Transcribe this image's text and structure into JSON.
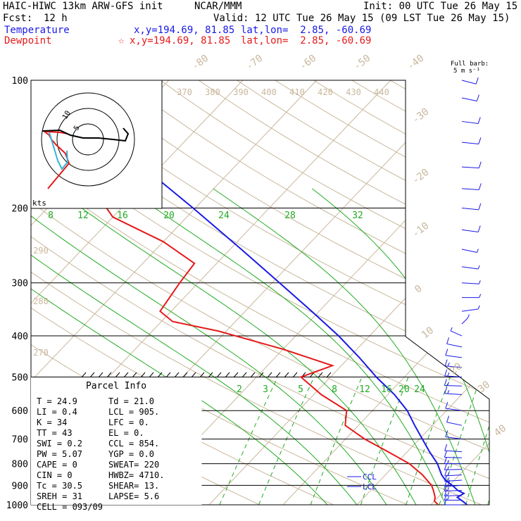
{
  "header": {
    "model": "HAIC-HIWC 13km ARW-GFS init",
    "org": "NCAR/MMM",
    "init": "Init: 00 UTC Tue 26 May 15",
    "fcst_label": "Fcst:",
    "fcst_value": "12 h",
    "valid": "Valid: 12 UTC Tue 26 May 15 (09 LST Tue 26 May 15)",
    "temperature_label": "Temperature",
    "temperature_xy": "x,y=194.69, 81.85",
    "temperature_latlon": "lat,lon=  2.85, -60.69",
    "dewpoint_label": "Dewpoint",
    "dewpoint_star": "☆",
    "dewpoint_xy": "x,y=194.69, 81.85",
    "dewpoint_latlon": "lat,lon=  2.85, -60.69"
  },
  "barb_legend": {
    "line1": "Full barb:",
    "line2": "5 m s⁻¹"
  },
  "colors": {
    "temperature": "#1a1ae6",
    "dewpoint": "#e61a1a",
    "isotherm": "#c9b79c",
    "mixing_ratio": "#22aa22",
    "barb": "#1a1ae6"
  },
  "hodograph": {
    "label": "kts",
    "ring_labels": [
      "5",
      "10"
    ]
  },
  "parcel_info": {
    "title": "Parcel Info",
    "rows": [
      [
        "T  =    24.9",
        "Td =  21.0"
      ],
      [
        "LI =     0.4",
        "LCL =  905."
      ],
      [
        "K  =      34",
        "LFC =    0."
      ],
      [
        "TT =      43",
        "EL  =    0."
      ],
      [
        "SWI =    0.2",
        "CCL =  854."
      ],
      [
        "PW =    5.07",
        "YGP =   0.0"
      ],
      [
        "CAPE =     0",
        "SWEAT=  220"
      ],
      [
        "CIN  =     0",
        "HWBZ= 4710."
      ],
      [
        "Tc =    30.5",
        "SHEAR=  13."
      ],
      [
        "SREH =    31",
        "LAPSE=  5.6"
      ],
      [
        "CELL = 093/09",
        ""
      ]
    ]
  },
  "chart_data": {
    "type": "line",
    "title": "",
    "xlabel": "",
    "ylabel": "",
    "pressure_levels_hPa": [
      "100",
      "200",
      "300",
      "400",
      "500",
      "600",
      "700",
      "800",
      "900",
      "1000"
    ],
    "ylim_hPa": [
      1000,
      100
    ],
    "isotherm_labels_C": [
      "-80",
      "-70",
      "-60",
      "-50",
      "-40",
      "-30",
      "-20",
      "-10",
      "0",
      "10",
      "20",
      "30",
      "40"
    ],
    "theta_labels_K": [
      "370",
      "380",
      "390",
      "400",
      "410",
      "420",
      "430",
      "440",
      "290",
      "280",
      "270"
    ],
    "mixing_ratio_labels": [
      "8",
      "12",
      "16",
      "20",
      "24",
      "28",
      "32",
      "2",
      "3",
      "5",
      "8",
      "12",
      "16",
      "20",
      "24"
    ],
    "level_marks": [
      "CCL",
      "LCL"
    ],
    "series": [
      {
        "name": "Temperature",
        "points_p_T": [
          [
            1000,
            24.9
          ],
          [
            980,
            23.8
          ],
          [
            960,
            22.6
          ],
          [
            940,
            23.0
          ],
          [
            925,
            21.8
          ],
          [
            900,
            20.4
          ],
          [
            875,
            18.8
          ],
          [
            850,
            17.6
          ],
          [
            800,
            15.6
          ],
          [
            750,
            13.0
          ],
          [
            700,
            10.4
          ],
          [
            650,
            7.6
          ],
          [
            600,
            4.7
          ],
          [
            550,
            0.9
          ],
          [
            500,
            -3.8
          ],
          [
            450,
            -8.6
          ],
          [
            400,
            -14.2
          ],
          [
            350,
            -21.0
          ],
          [
            300,
            -29.0
          ],
          [
            250,
            -38.5
          ],
          [
            200,
            -50.3
          ],
          [
            175,
            -57.5
          ],
          [
            150,
            -66.0
          ],
          [
            125,
            -74.5
          ],
          [
            110,
            -79.5
          ],
          [
            100,
            -80.5
          ]
        ]
      },
      {
        "name": "Dewpoint",
        "points_p_T": [
          [
            1000,
            21.0
          ],
          [
            980,
            20.0
          ],
          [
            960,
            19.6
          ],
          [
            925,
            18.5
          ],
          [
            900,
            17.6
          ],
          [
            850,
            15.0
          ],
          [
            800,
            11.8
          ],
          [
            750,
            7.4
          ],
          [
            700,
            2.6
          ],
          [
            650,
            -1.8
          ],
          [
            600,
            -3.5
          ],
          [
            550,
            -9.0
          ],
          [
            500,
            -14.0
          ],
          [
            470,
            -11.2
          ],
          [
            430,
            -20.0
          ],
          [
            390,
            -31.0
          ],
          [
            370,
            -38.5
          ],
          [
            350,
            -41.5
          ],
          [
            300,
            -42.5
          ],
          [
            270,
            -43.0
          ],
          [
            240,
            -50.0
          ],
          [
            210,
            -60.0
          ],
          [
            200,
            -62.0
          ],
          [
            185,
            -73.0
          ],
          [
            170,
            -82.0
          ],
          [
            155,
            -88.0
          ],
          [
            140,
            -87.0
          ],
          [
            125,
            -86.0
          ],
          [
            110,
            -85.0
          ],
          [
            100,
            -82.0
          ]
        ]
      }
    ],
    "wind_barbs": [
      {
        "p": 1000,
        "spd_kt": 10,
        "dir": 90
      },
      {
        "p": 975,
        "spd_kt": 15,
        "dir": 90
      },
      {
        "p": 950,
        "spd_kt": 15,
        "dir": 85
      },
      {
        "p": 925,
        "spd_kt": 15,
        "dir": 85
      },
      {
        "p": 900,
        "spd_kt": 20,
        "dir": 80
      },
      {
        "p": 875,
        "spd_kt": 15,
        "dir": 80
      },
      {
        "p": 850,
        "spd_kt": 15,
        "dir": 80
      },
      {
        "p": 825,
        "spd_kt": 15,
        "dir": 85
      },
      {
        "p": 800,
        "spd_kt": 15,
        "dir": 90
      },
      {
        "p": 775,
        "spd_kt": 10,
        "dir": 95
      },
      {
        "p": 750,
        "spd_kt": 10,
        "dir": 100
      },
      {
        "p": 700,
        "spd_kt": 10,
        "dir": 110
      },
      {
        "p": 650,
        "spd_kt": 10,
        "dir": 120
      },
      {
        "p": 600,
        "spd_kt": 10,
        "dir": 110
      },
      {
        "p": 550,
        "spd_kt": 15,
        "dir": 100
      },
      {
        "p": 525,
        "spd_kt": 15,
        "dir": 95
      },
      {
        "p": 500,
        "spd_kt": 15,
        "dir": 100
      },
      {
        "p": 475,
        "spd_kt": 15,
        "dir": 105
      },
      {
        "p": 450,
        "spd_kt": 10,
        "dir": 110
      },
      {
        "p": 425,
        "spd_kt": 10,
        "dir": 120
      },
      {
        "p": 400,
        "spd_kt": 5,
        "dir": 140
      },
      {
        "p": 375,
        "spd_kt": 5,
        "dir": 200
      },
      {
        "p": 350,
        "spd_kt": 5,
        "dir": 250
      },
      {
        "p": 325,
        "spd_kt": 5,
        "dir": 270
      },
      {
        "p": 300,
        "spd_kt": 5,
        "dir": 280
      },
      {
        "p": 275,
        "spd_kt": 5,
        "dir": 290
      },
      {
        "p": 250,
        "spd_kt": 5,
        "dir": 300
      },
      {
        "p": 225,
        "spd_kt": 10,
        "dir": 290
      },
      {
        "p": 200,
        "spd_kt": 10,
        "dir": 285
      },
      {
        "p": 180,
        "spd_kt": 10,
        "dir": 280
      },
      {
        "p": 160,
        "spd_kt": 10,
        "dir": 280
      },
      {
        "p": 140,
        "spd_kt": 10,
        "dir": 285
      },
      {
        "p": 125,
        "spd_kt": 10,
        "dir": 290
      },
      {
        "p": 110,
        "spd_kt": 10,
        "dir": 300
      },
      {
        "p": 100,
        "spd_kt": 10,
        "dir": 305
      }
    ]
  }
}
